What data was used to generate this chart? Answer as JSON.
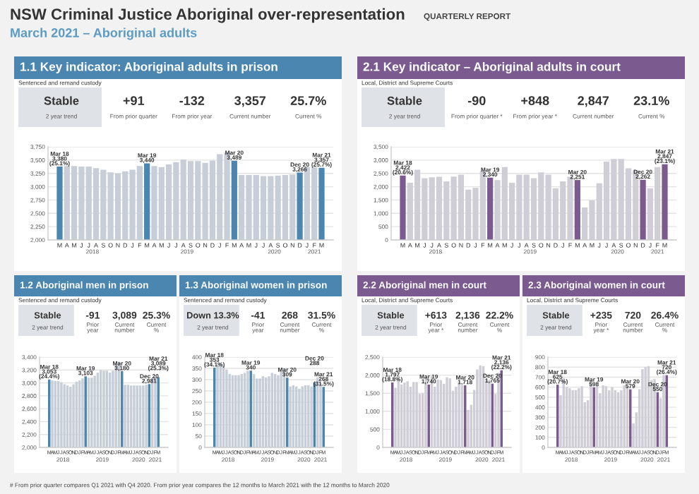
{
  "chart_data": [
    {
      "type": "other",
      "title": "NSW Criminal Justice Aboriginal over-representation",
      "subtitle": "March 2021 – Aboriginal adults",
      "annotations": [
        "QUARTERLY REPORT",
        "# From prior quarter compares Q1 2021 with Q4 2020. From prior year compares the 12 months to March 2021 with the 12 months to March 2020"
      ]
    },
    {
      "type": "bar",
      "title": "1.1 Key indicator: Aboriginal adults in prison",
      "subtitle": "Sentenced and remand custody",
      "categories": [
        "M",
        "A",
        "M",
        "J",
        "J",
        "A",
        "S",
        "O",
        "N",
        "D",
        "J",
        "F",
        "M",
        "A",
        "M",
        "J",
        "J",
        "A",
        "S",
        "O",
        "N",
        "D",
        "J",
        "F",
        "M",
        "A",
        "M",
        "J",
        "J",
        "A",
        "S",
        "O",
        "N",
        "D",
        "J",
        "F",
        "M"
      ],
      "values": [
        3380,
        3390,
        3390,
        3380,
        3380,
        3350,
        3320,
        3270,
        3250,
        3290,
        3320,
        3390,
        3440,
        3390,
        3370,
        3420,
        3460,
        3510,
        3480,
        3480,
        3450,
        3490,
        3610,
        3640,
        3489,
        3220,
        3220,
        3220,
        3200,
        3200,
        3210,
        3220,
        3230,
        3266,
        3370,
        3370,
        3357
      ],
      "colors": [
        "#4a86b0",
        "#c7ced8",
        "#c7ced8",
        "#c7ced8",
        "#c7ced8",
        "#c7ced8",
        "#c7ced8",
        "#c7ced8",
        "#c7ced8",
        "#c7ced8",
        "#c7ced8",
        "#c7ced8",
        "#4a86b0",
        "#c7ced8",
        "#c7ced8",
        "#c7ced8",
        "#c7ced8",
        "#c7ced8",
        "#c7ced8",
        "#c7ced8",
        "#c7ced8",
        "#c7ced8",
        "#c7ced8",
        "#c7ced8",
        "#4a86b0",
        "#c7ced8",
        "#c7ced8",
        "#c7ced8",
        "#c7ced8",
        "#c7ced8",
        "#c7ced8",
        "#c7ced8",
        "#c7ced8",
        "#4a86b0",
        "#c7ced8",
        "#c7ced8",
        "#4a86b0"
      ],
      "value_labels": [
        "Mar 18\n3,380\n(25.1%)",
        null,
        null,
        null,
        null,
        null,
        null,
        null,
        null,
        null,
        null,
        null,
        "Mar 19\n3,440",
        null,
        null,
        null,
        null,
        null,
        null,
        null,
        null,
        null,
        null,
        null,
        "Mar 20\n3,489",
        null,
        null,
        null,
        null,
        null,
        null,
        null,
        null,
        "Dec 20\n3,266",
        null,
        null,
        "Mar 21\n3,357\n(25.7%)"
      ],
      "ylim": [
        2000,
        3750
      ],
      "yticks": [
        {
          "value": 2000,
          "label": "2,000"
        },
        {
          "value": 2250,
          "label": "2,250"
        },
        {
          "value": 2500,
          "label": "2,500"
        },
        {
          "value": 2750,
          "label": "2,750"
        },
        {
          "value": 3000,
          "label": "3,000"
        },
        {
          "value": 3250,
          "label": "3,250"
        },
        {
          "value": 3500,
          "label": "3,500"
        },
        {
          "value": 3750,
          "label": "3,750"
        }
      ],
      "grid": "y",
      "annotations": [
        "Stable\n2 year trend",
        "+91\nFrom prior quarter",
        "-132\nFrom prior year",
        "3,357\nCurrent number",
        "25.7%\nCurrent %",
        "2018",
        "2019",
        "2020",
        "2021"
      ]
    },
    {
      "type": "bar",
      "title": "2.1 Key indicator – Aboriginal adults in court",
      "subtitle": "Local, District and Supreme Courts",
      "categories": [
        "M",
        "A",
        "M",
        "J",
        "J",
        "A",
        "S",
        "O",
        "N",
        "D",
        "J",
        "F",
        "M",
        "A",
        "M",
        "J",
        "J",
        "A",
        "S",
        "O",
        "N",
        "D",
        "J",
        "F",
        "M",
        "A",
        "M",
        "J",
        "J",
        "A",
        "S",
        "O",
        "N",
        "D",
        "J",
        "F",
        "M"
      ],
      "values": [
        2422,
        2150,
        2640,
        2320,
        2350,
        2370,
        2200,
        2380,
        2450,
        1890,
        1960,
        2590,
        2340,
        2250,
        2740,
        2150,
        2450,
        2450,
        2320,
        2540,
        2450,
        1940,
        2200,
        2370,
        2251,
        1220,
        1490,
        2130,
        2940,
        3040,
        3040,
        2690,
        2620,
        2262,
        1940,
        2740,
        2847
      ],
      "colors": [
        "#7b5b8f",
        "#cfcdd6",
        "#cfcdd6",
        "#cfcdd6",
        "#cfcdd6",
        "#cfcdd6",
        "#cfcdd6",
        "#cfcdd6",
        "#cfcdd6",
        "#cfcdd6",
        "#cfcdd6",
        "#cfcdd6",
        "#7b5b8f",
        "#cfcdd6",
        "#cfcdd6",
        "#cfcdd6",
        "#cfcdd6",
        "#cfcdd6",
        "#cfcdd6",
        "#cfcdd6",
        "#cfcdd6",
        "#cfcdd6",
        "#cfcdd6",
        "#cfcdd6",
        "#7b5b8f",
        "#cfcdd6",
        "#cfcdd6",
        "#cfcdd6",
        "#cfcdd6",
        "#cfcdd6",
        "#cfcdd6",
        "#cfcdd6",
        "#cfcdd6",
        "#7b5b8f",
        "#cfcdd6",
        "#cfcdd6",
        "#7b5b8f"
      ],
      "value_labels": [
        "Mar 18\n2,422\n(20.6%)",
        null,
        null,
        null,
        null,
        null,
        null,
        null,
        null,
        null,
        null,
        null,
        "Mar 19\n2,340",
        null,
        null,
        null,
        null,
        null,
        null,
        null,
        null,
        null,
        null,
        null,
        "Mar 20\n2,251",
        null,
        null,
        null,
        null,
        null,
        null,
        null,
        null,
        "Dec 20\n2,262",
        null,
        null,
        "Mar 21\n2,847\n(23.1%)"
      ],
      "ylim": [
        0,
        3500
      ],
      "yticks": [
        0,
        500,
        {
          "value": 1000,
          "label": "1,000"
        },
        {
          "value": 1500,
          "label": "1,500"
        },
        {
          "value": 2000,
          "label": "2,000"
        },
        {
          "value": 2500,
          "label": "2,500"
        },
        {
          "value": 3000,
          "label": "3,000"
        },
        {
          "value": 3500,
          "label": "3,500"
        }
      ],
      "grid": "y",
      "annotations": [
        "Stable\n2 year trend",
        "-90\nFrom prior quarter *",
        "+848\nFrom prior year *",
        "2,847\nCurrent number",
        "23.1%\nCurrent %",
        "2018",
        "2019",
        "2020",
        "2021"
      ]
    },
    {
      "type": "bar",
      "title": "1.2 Aboriginal men in prison",
      "subtitle": "Sentenced and remand custody",
      "categories": [
        "M",
        "A",
        "M",
        "J",
        "J",
        "A",
        "S",
        "O",
        "N",
        "D",
        "J",
        "F",
        "M",
        "A",
        "M",
        "J",
        "J",
        "A",
        "S",
        "O",
        "N",
        "D",
        "J",
        "F",
        "M",
        "A",
        "M",
        "J",
        "J",
        "A",
        "S",
        "O",
        "N",
        "D",
        "J",
        "F",
        "M"
      ],
      "values": [
        3053,
        3040,
        3030,
        3030,
        3010,
        2980,
        2960,
        2940,
        2980,
        3020,
        3040,
        3070,
        3103,
        3080,
        3080,
        3110,
        3160,
        3200,
        3190,
        3190,
        3160,
        3190,
        3300,
        3330,
        3180,
        2970,
        2970,
        2960,
        2960,
        2960,
        2960,
        2960,
        2970,
        2981,
        3080,
        3090,
        3089
      ],
      "colors": [
        "#4a86b0",
        "#c7ced8",
        "#c7ced8",
        "#c7ced8",
        "#c7ced8",
        "#c7ced8",
        "#c7ced8",
        "#c7ced8",
        "#c7ced8",
        "#c7ced8",
        "#c7ced8",
        "#c7ced8",
        "#4a86b0",
        "#c7ced8",
        "#c7ced8",
        "#c7ced8",
        "#c7ced8",
        "#c7ced8",
        "#c7ced8",
        "#c7ced8",
        "#c7ced8",
        "#c7ced8",
        "#c7ced8",
        "#c7ced8",
        "#4a86b0",
        "#c7ced8",
        "#c7ced8",
        "#c7ced8",
        "#c7ced8",
        "#c7ced8",
        "#c7ced8",
        "#c7ced8",
        "#c7ced8",
        "#4a86b0",
        "#c7ced8",
        "#c7ced8",
        "#4a86b0"
      ],
      "value_labels": [
        "Mar 18\n3,053\n(24.4%)",
        null,
        null,
        null,
        null,
        null,
        null,
        null,
        null,
        null,
        null,
        null,
        "Mar 19\n3,103",
        null,
        null,
        null,
        null,
        null,
        null,
        null,
        null,
        null,
        null,
        null,
        "Mar 20\n3,180",
        null,
        null,
        null,
        null,
        null,
        null,
        null,
        null,
        "Dec 20\n2,981",
        null,
        null,
        "Mar 21\n3,089\n(25.3%)"
      ],
      "ylim": [
        2000,
        3400
      ],
      "yticks": [
        {
          "value": 2000,
          "label": "2,000"
        },
        {
          "value": 2200,
          "label": "2,200"
        },
        {
          "value": 2400,
          "label": "2,400"
        },
        {
          "value": 2600,
          "label": "2,600"
        },
        {
          "value": 2800,
          "label": "2,800"
        },
        {
          "value": 3000,
          "label": "3,000"
        },
        {
          "value": 3200,
          "label": "3,200"
        },
        {
          "value": 3400,
          "label": "3,400"
        }
      ],
      "grid": "y",
      "annotations": [
        "Stable\n2 year trend",
        "-91\nPrior\nyear",
        "3,089\nCurrent\nnumber",
        "25.3%\nCurrent\n%",
        "2018",
        "2019",
        "2020",
        "2021"
      ]
    },
    {
      "type": "bar",
      "title": "1.3 Aboriginal women in prison",
      "subtitle": "Sentenced and remand custody",
      "categories": [
        "M",
        "A",
        "M",
        "J",
        "J",
        "A",
        "S",
        "O",
        "N",
        "D",
        "J",
        "F",
        "M",
        "A",
        "M",
        "J",
        "J",
        "A",
        "S",
        "O",
        "N",
        "D",
        "J",
        "F",
        "M",
        "A",
        "M",
        "J",
        "J",
        "A",
        "S",
        "O",
        "N",
        "D",
        "J",
        "F",
        "M"
      ],
      "values": [
        353,
        365,
        375,
        360,
        345,
        325,
        320,
        320,
        320,
        325,
        330,
        340,
        340,
        325,
        305,
        305,
        315,
        310,
        315,
        330,
        325,
        320,
        335,
        350,
        309,
        270,
        275,
        270,
        260,
        270,
        275,
        275,
        270,
        288,
        310,
        285,
        268
      ],
      "colors": [
        "#4a86b0",
        "#c7ced8",
        "#c7ced8",
        "#c7ced8",
        "#c7ced8",
        "#c7ced8",
        "#c7ced8",
        "#c7ced8",
        "#c7ced8",
        "#c7ced8",
        "#c7ced8",
        "#c7ced8",
        "#4a86b0",
        "#c7ced8",
        "#c7ced8",
        "#c7ced8",
        "#c7ced8",
        "#c7ced8",
        "#c7ced8",
        "#c7ced8",
        "#c7ced8",
        "#c7ced8",
        "#c7ced8",
        "#c7ced8",
        "#4a86b0",
        "#c7ced8",
        "#c7ced8",
        "#c7ced8",
        "#c7ced8",
        "#c7ced8",
        "#c7ced8",
        "#c7ced8",
        "#c7ced8",
        "#4a86b0",
        "#c7ced8",
        "#c7ced8",
        "#4a86b0"
      ],
      "value_labels": [
        "Mar 18\n353\n(34.1%)",
        null,
        null,
        null,
        null,
        null,
        null,
        null,
        null,
        null,
        null,
        null,
        "Mar 19\n340",
        null,
        null,
        null,
        null,
        null,
        null,
        null,
        null,
        null,
        null,
        null,
        "Mar 20\n309",
        null,
        null,
        null,
        null,
        null,
        null,
        null,
        null,
        "Dec 20\n288",
        null,
        null,
        "Mar 21\n268\n(31.5%)"
      ],
      "ylim": [
        0,
        400
      ],
      "yticks": [
        0,
        50,
        100,
        150,
        200,
        250,
        300,
        350,
        400
      ],
      "grid": "y",
      "annotations": [
        "Down 13.3%\n2 year trend",
        "-41\nPrior\nyear",
        "268\nCurrent\nnumber",
        "31.5%\nCurrent\n%",
        "2018",
        "2019",
        "2020",
        "2021"
      ]
    },
    {
      "type": "bar",
      "title": "2.2 Aboriginal men in court",
      "subtitle": "Local, District and Supreme Courts",
      "categories": [
        "M",
        "A",
        "M",
        "J",
        "J",
        "A",
        "S",
        "O",
        "N",
        "D",
        "J",
        "F",
        "M",
        "A",
        "M",
        "J",
        "J",
        "A",
        "S",
        "O",
        "N",
        "D",
        "J",
        "F",
        "M",
        "A",
        "M",
        "J",
        "J",
        "A",
        "S",
        "O",
        "N",
        "D",
        "J",
        "F",
        "M"
      ],
      "values": [
        1797,
        1650,
        1980,
        1740,
        1790,
        1830,
        1680,
        1810,
        1810,
        1480,
        1500,
        1940,
        1740,
        1970,
        1680,
        1880,
        1860,
        1760,
        1940,
        1910,
        1570,
        1680,
        1810,
        1720,
        1718,
        1040,
        1180,
        1590,
        2160,
        2270,
        2250,
        1890,
        1870,
        1765,
        1480,
        2060,
        2136
      ],
      "colors": [
        "#7b5b8f",
        "#cfcdd6",
        "#cfcdd6",
        "#cfcdd6",
        "#cfcdd6",
        "#cfcdd6",
        "#cfcdd6",
        "#cfcdd6",
        "#cfcdd6",
        "#cfcdd6",
        "#cfcdd6",
        "#cfcdd6",
        "#7b5b8f",
        "#cfcdd6",
        "#cfcdd6",
        "#cfcdd6",
        "#cfcdd6",
        "#cfcdd6",
        "#cfcdd6",
        "#cfcdd6",
        "#cfcdd6",
        "#cfcdd6",
        "#cfcdd6",
        "#cfcdd6",
        "#7b5b8f",
        "#cfcdd6",
        "#cfcdd6",
        "#cfcdd6",
        "#cfcdd6",
        "#cfcdd6",
        "#cfcdd6",
        "#cfcdd6",
        "#cfcdd6",
        "#7b5b8f",
        "#cfcdd6",
        "#cfcdd6",
        "#7b5b8f"
      ],
      "value_labels": [
        "Mar 18\n1,797\n(18.8%)",
        null,
        null,
        null,
        null,
        null,
        null,
        null,
        null,
        null,
        null,
        null,
        "Mar 19\n1,740",
        null,
        null,
        null,
        null,
        null,
        null,
        null,
        null,
        null,
        null,
        null,
        "Mar 20\n1,718",
        null,
        null,
        null,
        null,
        null,
        null,
        null,
        null,
        "Dec 20\n1,765",
        null,
        null,
        "Mar 21\n2,136\n(22.2%)"
      ],
      "ylim": [
        0,
        2500
      ],
      "yticks": [
        0,
        500,
        {
          "value": 1000,
          "label": "1,000"
        },
        {
          "value": 1500,
          "label": "1,500"
        },
        {
          "value": 2000,
          "label": "2,000"
        },
        {
          "value": 2500,
          "label": "2,500"
        }
      ],
      "grid": "y",
      "annotations": [
        "Stable\n2 year trend",
        "+613\nPrior\nyear *",
        "2,136\nCurrent\nnumber",
        "22.2%\nCurrent\n%",
        "2018",
        "2019",
        "2020",
        "2021"
      ]
    },
    {
      "type": "bar",
      "title": "2.3 Aboriginal women in court",
      "subtitle": "Local, District and Supreme Courts",
      "categories": [
        "M",
        "A",
        "M",
        "J",
        "J",
        "A",
        "S",
        "O",
        "N",
        "D",
        "J",
        "F",
        "M",
        "A",
        "M",
        "J",
        "J",
        "A",
        "S",
        "O",
        "N",
        "D",
        "J",
        "F",
        "M",
        "A",
        "M",
        "J",
        "J",
        "A",
        "S",
        "O",
        "N",
        "D",
        "J",
        "F",
        "M"
      ],
      "values": [
        625,
        520,
        690,
        600,
        590,
        570,
        570,
        590,
        610,
        450,
        470,
        670,
        598,
        620,
        540,
        620,
        610,
        570,
        600,
        570,
        550,
        570,
        620,
        610,
        579,
        240,
        350,
        580,
        780,
        800,
        810,
        670,
        680,
        550,
        490,
        720,
        720
      ],
      "colors": [
        "#7b5b8f",
        "#cfcdd6",
        "#cfcdd6",
        "#cfcdd6",
        "#cfcdd6",
        "#cfcdd6",
        "#cfcdd6",
        "#cfcdd6",
        "#cfcdd6",
        "#cfcdd6",
        "#cfcdd6",
        "#cfcdd6",
        "#7b5b8f",
        "#cfcdd6",
        "#cfcdd6",
        "#cfcdd6",
        "#cfcdd6",
        "#cfcdd6",
        "#cfcdd6",
        "#cfcdd6",
        "#cfcdd6",
        "#cfcdd6",
        "#cfcdd6",
        "#cfcdd6",
        "#7b5b8f",
        "#cfcdd6",
        "#cfcdd6",
        "#cfcdd6",
        "#cfcdd6",
        "#cfcdd6",
        "#cfcdd6",
        "#cfcdd6",
        "#cfcdd6",
        "#7b5b8f",
        "#cfcdd6",
        "#cfcdd6",
        "#7b5b8f"
      ],
      "value_labels": [
        "Mar 18\n625\n(20.7%)",
        null,
        null,
        null,
        null,
        null,
        null,
        null,
        null,
        null,
        null,
        null,
        "Mar 19\n598",
        null,
        null,
        null,
        null,
        null,
        null,
        null,
        null,
        null,
        null,
        null,
        "Mar 20\n579",
        null,
        null,
        null,
        null,
        null,
        null,
        null,
        null,
        "Dec 20\n550",
        null,
        null,
        "Mar 21\n720\n(26.4%)"
      ],
      "ylim": [
        0,
        900
      ],
      "yticks": [
        0,
        100,
        200,
        300,
        400,
        500,
        600,
        700,
        800,
        900
      ],
      "grid": "y",
      "annotations": [
        "Stable\n2 year trend",
        "+235\nPrior\nyear *",
        "720\nCurrent\nnumber",
        "26.4%\nCurrent\n%",
        "2018",
        "2019",
        "2020",
        "2021"
      ]
    }
  ]
}
